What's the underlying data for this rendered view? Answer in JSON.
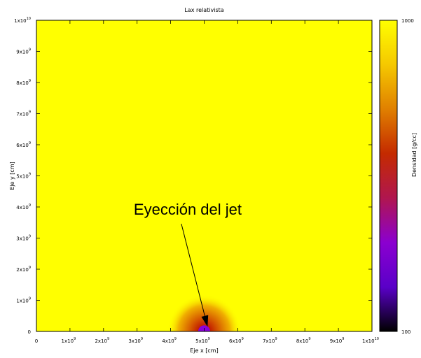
{
  "chart_data": {
    "type": "heatmap",
    "title": "Lax relativista",
    "xlabel": "Eje x [cm]",
    "ylabel": "Eje y [cm]",
    "xlim": [
      0,
      10000000000
    ],
    "ylim": [
      0,
      10000000000
    ],
    "x_ticks": [
      {
        "value": 0,
        "base": "0",
        "exp": ""
      },
      {
        "value": 1000000000,
        "base": "1x10",
        "exp": "9"
      },
      {
        "value": 2000000000,
        "base": "2x10",
        "exp": "9"
      },
      {
        "value": 3000000000,
        "base": "3x10",
        "exp": "9"
      },
      {
        "value": 4000000000,
        "base": "4x10",
        "exp": "9"
      },
      {
        "value": 5000000000,
        "base": "5x10",
        "exp": "9"
      },
      {
        "value": 6000000000,
        "base": "6x10",
        "exp": "9"
      },
      {
        "value": 7000000000,
        "base": "7x10",
        "exp": "9"
      },
      {
        "value": 8000000000,
        "base": "8x10",
        "exp": "9"
      },
      {
        "value": 9000000000,
        "base": "9x10",
        "exp": "9"
      },
      {
        "value": 10000000000,
        "base": "1x10",
        "exp": "10"
      }
    ],
    "y_ticks": [
      {
        "value": 0,
        "base": "0",
        "exp": ""
      },
      {
        "value": 1000000000,
        "base": "1x10",
        "exp": "9"
      },
      {
        "value": 2000000000,
        "base": "2x10",
        "exp": "9"
      },
      {
        "value": 3000000000,
        "base": "3x10",
        "exp": "9"
      },
      {
        "value": 4000000000,
        "base": "4x10",
        "exp": "9"
      },
      {
        "value": 5000000000,
        "base": "5x10",
        "exp": "9"
      },
      {
        "value": 6000000000,
        "base": "6x10",
        "exp": "9"
      },
      {
        "value": 7000000000,
        "base": "7x10",
        "exp": "9"
      },
      {
        "value": 8000000000,
        "base": "8x10",
        "exp": "9"
      },
      {
        "value": 9000000000,
        "base": "9x10",
        "exp": "9"
      },
      {
        "value": 10000000000,
        "base": "1x10",
        "exp": "10"
      }
    ],
    "colorbar": {
      "label": "Densidad [g/cc]",
      "min": 100,
      "max": 1000,
      "ticks": [
        {
          "value": 1000,
          "text": "1000"
        },
        {
          "value": 100,
          "text": "100"
        }
      ],
      "colors": [
        "#000000",
        "#5a00c8",
        "#8b00d0",
        "#b0164f",
        "#c42a00",
        "#e08000",
        "#f5c800",
        "#ffff00"
      ]
    },
    "background_density": 1000,
    "jet_source": {
      "x": 5000000000,
      "y": 0,
      "core_radius": 180000000,
      "halo_radius": 1100000000,
      "core_color": "#8a00d8"
    },
    "annotation": {
      "text": "Eyección del jet",
      "text_x": 2900000000,
      "text_y": 3750000000,
      "point_x": 5100000000,
      "point_y": 150000000
    }
  }
}
